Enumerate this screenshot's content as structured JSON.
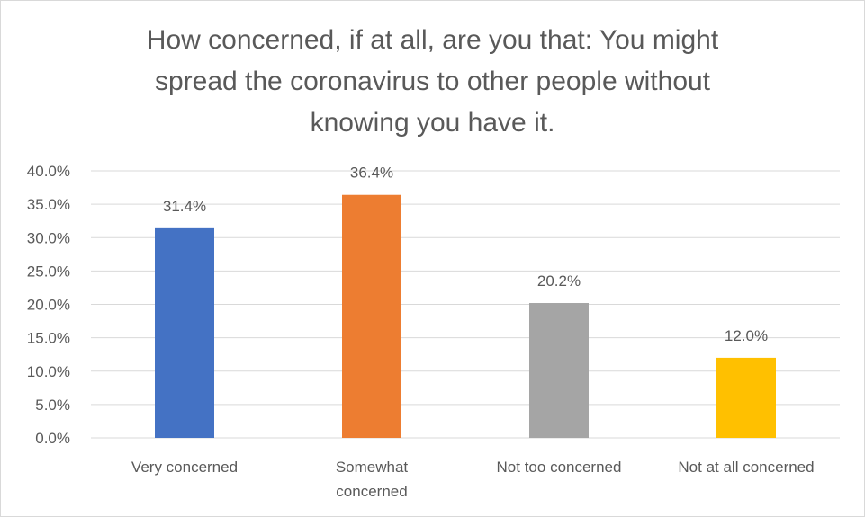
{
  "chart_data": {
    "type": "bar",
    "title_lines": [
      "How concerned, if at all, are you that: You might",
      "spread the coronavirus to other people without",
      "knowing you have it."
    ],
    "categories": [
      [
        "Very concerned"
      ],
      [
        "Somewhat",
        "concerned"
      ],
      [
        "Not too concerned"
      ],
      [
        "Not at all concerned"
      ]
    ],
    "values": [
      31.4,
      36.4,
      20.2,
      12.0
    ],
    "value_labels": [
      "31.4%",
      "36.4%",
      "20.2%",
      "12.0%"
    ],
    "colors": [
      "#4472c4",
      "#ed7d31",
      "#a5a5a5",
      "#ffc000"
    ],
    "ylim": [
      0,
      40
    ],
    "y_ticks": [
      "0.0%",
      "5.0%",
      "10.0%",
      "15.0%",
      "20.0%",
      "25.0%",
      "30.0%",
      "35.0%",
      "40.0%"
    ],
    "gridlines": true,
    "legend": "none",
    "xlabel": "",
    "ylabel": ""
  }
}
